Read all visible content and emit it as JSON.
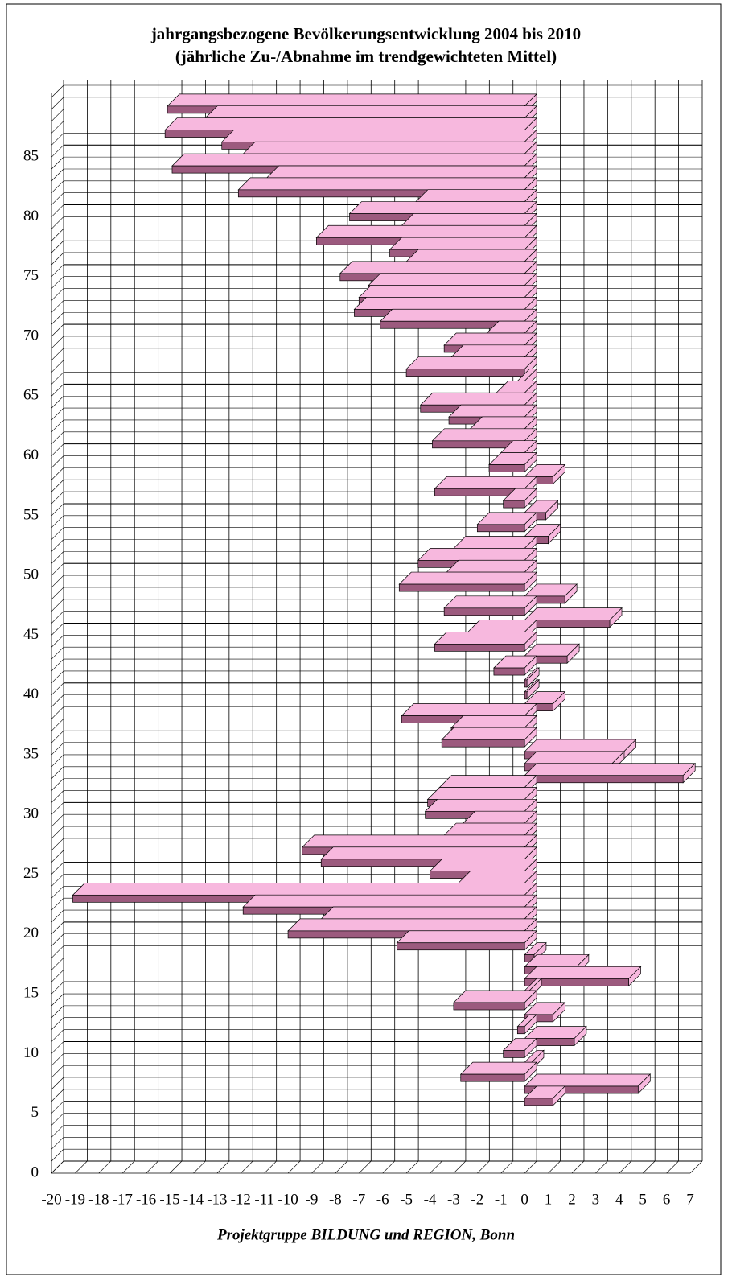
{
  "chart_data": {
    "type": "bar",
    "orientation": "horizontal",
    "title": "jahrgangsbezogene Bevölkerungsentwicklung 2004 bis 2010",
    "subtitle": "(jährliche Zu-/Abnahme im trendgewichteten Mittel)",
    "footer": "Projektgruppe BILDUNG und REGION, Bonn",
    "y": [
      6,
      7,
      8,
      9,
      10,
      11,
      12,
      13,
      14,
      15,
      16,
      17,
      18,
      19,
      20,
      21,
      22,
      23,
      24,
      25,
      26,
      27,
      28,
      29,
      30,
      31,
      32,
      33,
      34,
      35,
      36,
      37,
      38,
      39,
      40,
      41,
      42,
      43,
      44,
      45,
      46,
      47,
      48,
      49,
      50,
      51,
      52,
      53,
      54,
      55,
      56,
      57,
      58,
      59,
      60,
      61,
      62,
      63,
      64,
      65,
      66,
      67,
      68,
      69,
      70,
      71,
      72,
      73,
      74,
      75,
      76,
      77,
      78,
      79,
      80,
      81,
      82,
      83,
      84,
      85,
      86,
      87,
      88,
      89
    ],
    "values": [
      1.2,
      4.8,
      -2.7,
      0.3,
      -0.9,
      2.1,
      -0.3,
      1.2,
      -3.0,
      0.2,
      4.4,
      2.2,
      0.4,
      -5.4,
      -10.0,
      -8.6,
      -11.9,
      -19.1,
      -2.8,
      -4.0,
      -8.6,
      -9.4,
      -3.4,
      -2.6,
      -4.2,
      -4.1,
      -3.6,
      6.7,
      3.7,
      4.2,
      -3.5,
      -3.1,
      -5.2,
      1.2,
      0.1,
      0.1,
      -1.3,
      1.8,
      -3.8,
      -2.4,
      3.6,
      -3.4,
      1.7,
      -5.3,
      -3.3,
      -4.5,
      -3.0,
      1.0,
      -2.0,
      0.9,
      -0.9,
      -3.8,
      1.2,
      -1.5,
      -1.0,
      -3.9,
      -2.3,
      -3.2,
      -4.4,
      -1.2,
      -0.3,
      -5.0,
      -3.1,
      -3.4,
      -1.6,
      -6.1,
      -7.2,
      -7.0,
      -6.6,
      -7.8,
      -5.0,
      -5.7,
      -8.8,
      -5.2,
      -7.4,
      -4.6,
      -12.1,
      -10.9,
      -14.9,
      -11.9,
      -12.8,
      -15.2,
      -13.5,
      -15.1
    ],
    "color": "#f7b8de",
    "front_color": "#9c5a7e",
    "xlim": [
      -20,
      7
    ],
    "xticks": [
      -20,
      -19,
      -18,
      -17,
      -16,
      -15,
      -14,
      -13,
      -12,
      -11,
      -10,
      -9,
      -8,
      -7,
      -6,
      -5,
      -4,
      -3,
      -2,
      -1,
      0,
      1,
      2,
      3,
      4,
      5,
      6,
      7
    ],
    "ylim": [
      0,
      90
    ],
    "yticks": [
      0,
      5,
      10,
      15,
      20,
      25,
      30,
      35,
      40,
      45,
      50,
      55,
      60,
      65,
      70,
      75,
      80,
      85
    ],
    "grid": true
  }
}
